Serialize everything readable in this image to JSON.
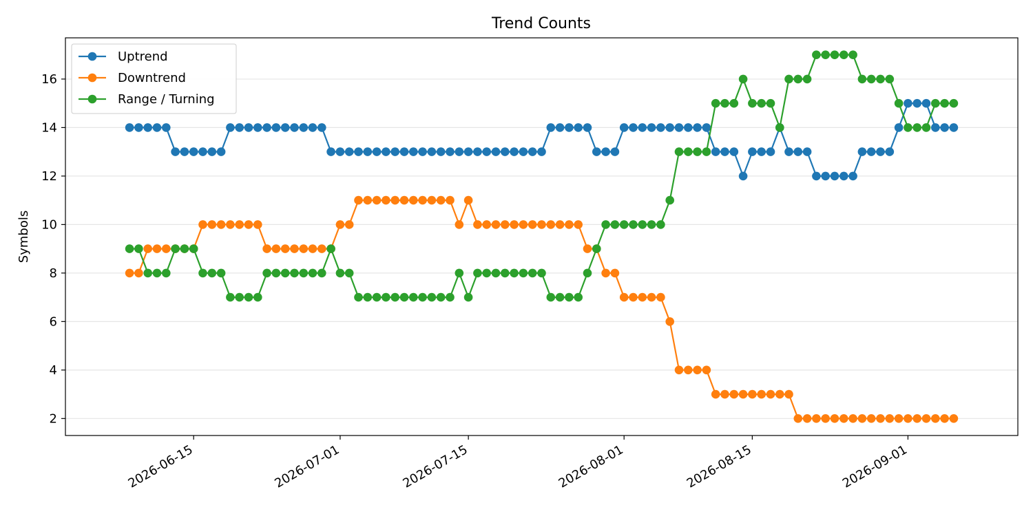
{
  "chart_data": {
    "type": "line",
    "title": "Trend Counts",
    "xlabel": "",
    "ylabel": "Symbols",
    "x_start": "2026-06-08",
    "x_ticks": [
      "2026-06-15",
      "2026-07-01",
      "2026-07-15",
      "2026-08-01",
      "2026-08-15",
      "2026-09-01"
    ],
    "y_ticks": [
      2,
      4,
      6,
      8,
      10,
      12,
      14,
      16
    ],
    "xlim": [
      "2026-06-01",
      "2026-09-13"
    ],
    "ylim": [
      1.3,
      17.7
    ],
    "grid": "y",
    "legend_position": "top-left",
    "series": [
      {
        "name": "Uptrend",
        "color": "#1f77b4",
        "values": [
          14,
          14,
          14,
          14,
          14,
          13,
          13,
          13,
          13,
          13,
          13,
          14,
          14,
          14,
          14,
          14,
          14,
          14,
          14,
          14,
          14,
          14,
          13,
          13,
          13,
          13,
          13,
          13,
          13,
          13,
          13,
          13,
          13,
          13,
          13,
          13,
          13,
          13,
          13,
          13,
          13,
          13,
          13,
          13,
          13,
          13,
          14,
          14,
          14,
          14,
          14,
          13,
          13,
          13,
          14,
          14,
          14,
          14,
          14,
          14,
          14,
          14,
          14,
          14,
          13,
          13,
          13,
          12,
          13,
          13,
          13,
          14,
          13,
          13,
          13,
          12,
          12,
          12,
          12,
          12,
          13,
          13,
          13,
          13,
          14,
          15,
          15,
          15,
          14,
          14,
          14
        ]
      },
      {
        "name": "Downtrend",
        "color": "#ff7f0e",
        "values": [
          8,
          8,
          9,
          9,
          9,
          9,
          9,
          9,
          10,
          10,
          10,
          10,
          10,
          10,
          10,
          9,
          9,
          9,
          9,
          9,
          9,
          9,
          9,
          10,
          10,
          11,
          11,
          11,
          11,
          11,
          11,
          11,
          11,
          11,
          11,
          11,
          10,
          11,
          10,
          10,
          10,
          10,
          10,
          10,
          10,
          10,
          10,
          10,
          10,
          10,
          9,
          9,
          8,
          8,
          7,
          7,
          7,
          7,
          7,
          6,
          4,
          4,
          4,
          4,
          3,
          3,
          3,
          3,
          3,
          3,
          3,
          3,
          3,
          2,
          2,
          2,
          2,
          2,
          2,
          2,
          2,
          2,
          2,
          2,
          2,
          2,
          2,
          2,
          2,
          2,
          2
        ]
      },
      {
        "name": "Range / Turning",
        "color": "#2ca02c",
        "values": [
          9,
          9,
          8,
          8,
          8,
          9,
          9,
          9,
          8,
          8,
          8,
          7,
          7,
          7,
          7,
          8,
          8,
          8,
          8,
          8,
          8,
          8,
          9,
          8,
          8,
          7,
          7,
          7,
          7,
          7,
          7,
          7,
          7,
          7,
          7,
          7,
          8,
          7,
          8,
          8,
          8,
          8,
          8,
          8,
          8,
          8,
          7,
          7,
          7,
          7,
          8,
          9,
          10,
          10,
          10,
          10,
          10,
          10,
          10,
          11,
          13,
          13,
          13,
          13,
          15,
          15,
          15,
          16,
          15,
          15,
          15,
          14,
          16,
          16,
          16,
          17,
          17,
          17,
          17,
          17,
          16,
          16,
          16,
          16,
          15,
          14,
          14,
          14,
          15,
          15,
          15
        ]
      }
    ]
  }
}
